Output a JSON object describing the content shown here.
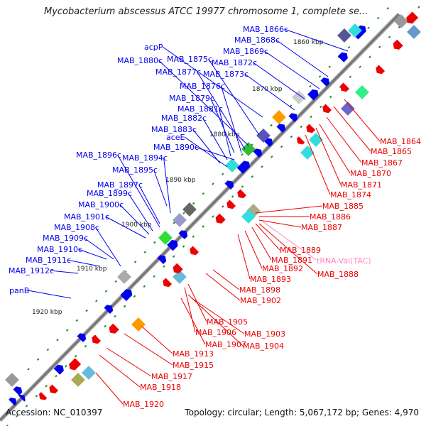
{
  "title": "Mycobacterium abscessus ATCC 19977 chromosome 1, complete se...",
  "footer": {
    "accession": "Accession: NC_010397",
    "summary": "Topology: circular; Length: 5,067,172 bp; Genes: 4,970"
  },
  "colors": {
    "forward_gene": "#0000ee",
    "reverse_gene": "#ee0000",
    "trna_label": "#ff88c8",
    "backbone": "#777777",
    "tick": "#228b22"
  },
  "scale_labels": [
    "1860 kbp",
    "1870 kbp",
    "1880 kbp",
    "1890 kbp",
    "1900 kbp",
    "1910 kbp",
    "1920 kbp"
  ],
  "forward_labels": [
    "MAB_1866c",
    "MAB_1868c",
    "MAB_1869c",
    "acpP",
    "MAB_1872c",
    "MAB_1875c",
    "MAB_1873c",
    "MAB_1880c",
    "MAB_1877c",
    "MAB_1876c",
    "MAB_1879c",
    "MAB_1881c",
    "MAB_1882c",
    "MAB_1883c",
    "aceE",
    "MAB_1890c",
    "MAB_1896c",
    "MAB_1894c",
    "MAB_1895c",
    "MAB_1897c",
    "MAB_1899c",
    "MAB_1900c",
    "MAB_1901c",
    "MAB_1908c",
    "MAB_1909c",
    "MAB_1910c",
    "MAB_1911c",
    "MAB_1912c",
    "panB"
  ],
  "reverse_labels": [
    "MAB_1864",
    "MAB_1865",
    "MAB_1867",
    "MAB_1870",
    "MAB_1871",
    "MAB_1874",
    "MAB_1885",
    "MAB_1886",
    "MAB_1887",
    "MAB_1889",
    "MAB_1891",
    "MAB_1892",
    "MAB_1888",
    "MAB_1893",
    "MAB_1898",
    "MAB_1902",
    "MAB_1905",
    "MAB_1903",
    "MAB_1906",
    "MAB_1904",
    "MAB_1907",
    "MAB_1913",
    "MAB_1915",
    "MAB_1917",
    "MAB_1918",
    "MAB_1920"
  ],
  "trna_label": "tRNA-Val(TAC)"
}
